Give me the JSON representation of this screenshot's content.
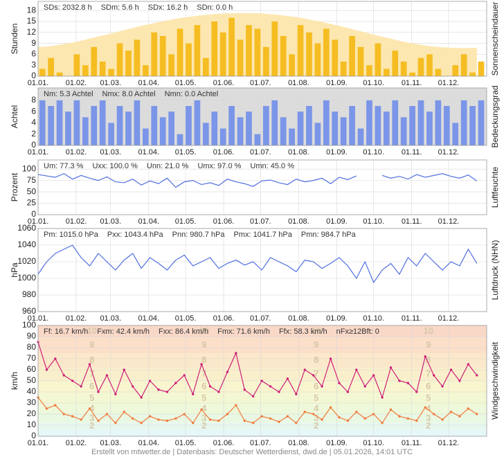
{
  "chart_data": [
    {
      "type": "bar",
      "y_label": "Stunden",
      "side_label": "Sonnenscheindauer",
      "stats": [
        "SDs: 2032.8 h",
        "SDm: 5.6 h",
        "SDx: 16.2 h",
        "SDn: 0.0 h"
      ],
      "x": [
        1,
        8,
        15,
        22,
        29,
        36,
        43,
        50,
        57,
        64,
        71,
        78,
        85,
        92,
        99,
        106,
        113,
        120,
        127,
        134,
        141,
        148,
        155,
        162,
        169,
        176,
        183,
        190,
        197,
        204,
        211,
        218,
        225,
        232,
        239,
        246,
        253,
        260,
        267,
        274,
        281,
        288,
        295,
        302,
        309,
        316,
        323,
        330,
        337,
        344,
        351,
        358
      ],
      "xlim": [
        1,
        366
      ],
      "xticks": [
        {
          "value": 1,
          "label": "01.01."
        },
        {
          "value": 32,
          "label": "01.02."
        },
        {
          "value": 60,
          "label": "01.03."
        },
        {
          "value": 91,
          "label": "01.04."
        },
        {
          "value": 121,
          "label": "01.05."
        },
        {
          "value": 152,
          "label": "01.06."
        },
        {
          "value": 182,
          "label": "01.07."
        },
        {
          "value": 213,
          "label": "01.08."
        },
        {
          "value": 244,
          "label": "01.09."
        },
        {
          "value": 274,
          "label": "01.10."
        },
        {
          "value": 305,
          "label": "01.11."
        },
        {
          "value": 335,
          "label": "01.12."
        }
      ],
      "ylim": [
        0,
        20.5
      ],
      "yticks": [
        0,
        3,
        6,
        9,
        12,
        15,
        18
      ],
      "grid": true,
      "series": [
        {
          "type": "area",
          "color": "#fde7b0",
          "values": [
            8.0,
            8.1,
            8.4,
            8.8,
            9.2,
            9.7,
            10.3,
            10.9,
            11.4,
            12.0,
            12.6,
            13.2,
            13.8,
            14.3,
            14.8,
            15.3,
            15.7,
            16.1,
            16.4,
            16.7,
            16.9,
            17.1,
            17.2,
            17.3,
            17.3,
            17.3,
            17.2,
            17.0,
            16.8,
            16.5,
            16.2,
            15.8,
            15.3,
            14.9,
            14.3,
            13.8,
            13.2,
            12.6,
            12.0,
            11.4,
            10.8,
            10.3,
            9.7,
            9.2,
            8.8,
            8.4,
            8.1,
            7.9,
            7.8,
            7.7,
            7.7,
            7.8
          ]
        },
        {
          "type": "bar",
          "color": "#f5bd22",
          "values": [
            2,
            5,
            1,
            0,
            6,
            3,
            8,
            4,
            2,
            9,
            7,
            10,
            3,
            12,
            11,
            6,
            13,
            9,
            14,
            5,
            15,
            12,
            16,
            10,
            14,
            13,
            8,
            15,
            11,
            6,
            14,
            12,
            9,
            13,
            10,
            4,
            11,
            8,
            3,
            9,
            2,
            7,
            4,
            1,
            5,
            6,
            2,
            0,
            3,
            6,
            1,
            4
          ]
        }
      ]
    },
    {
      "type": "bar",
      "y_label": "Achtel",
      "side_label": "Bedeckungsgrad",
      "background": "#dcdcdc",
      "stats": [
        "Nm: 5.3 Achtel",
        "Nmx: 8.0 Achtel",
        "Nmn: 0.0 Achtel"
      ],
      "x": [
        1,
        8,
        15,
        22,
        29,
        36,
        43,
        50,
        57,
        64,
        71,
        78,
        85,
        92,
        99,
        106,
        113,
        120,
        127,
        134,
        141,
        148,
        155,
        162,
        169,
        176,
        183,
        190,
        197,
        204,
        211,
        218,
        225,
        232,
        239,
        246,
        253,
        260,
        267,
        274,
        281,
        288,
        295,
        302,
        309,
        316,
        323,
        330,
        337,
        344,
        351,
        358
      ],
      "xlim": [
        1,
        366
      ],
      "xticks": [
        {
          "value": 1,
          "label": "01.01."
        },
        {
          "value": 32,
          "label": "01.02."
        },
        {
          "value": 60,
          "label": "01.03."
        },
        {
          "value": 91,
          "label": "01.04."
        },
        {
          "value": 121,
          "label": "01.05."
        },
        {
          "value": 152,
          "label": "01.06."
        },
        {
          "value": 182,
          "label": "01.07."
        },
        {
          "value": 213,
          "label": "01.08."
        },
        {
          "value": 244,
          "label": "01.09."
        },
        {
          "value": 274,
          "label": "01.10."
        },
        {
          "value": 305,
          "label": "01.11."
        },
        {
          "value": 335,
          "label": "01.12."
        }
      ],
      "ylim": [
        0,
        10.2
      ],
      "yticks": [
        0,
        2,
        4,
        6,
        8
      ],
      "grid": true,
      "series": [
        {
          "type": "bar",
          "color": "#7b96e8",
          "values": [
            8,
            7,
            8,
            6,
            8,
            5,
            7,
            8,
            4,
            7,
            6,
            8,
            3,
            7,
            5,
            6,
            2,
            7,
            8,
            4,
            6,
            3,
            7,
            5,
            6,
            2,
            7,
            8,
            5,
            3,
            6,
            7,
            4,
            8,
            6,
            5,
            7,
            3,
            8,
            7,
            6,
            8,
            5,
            7,
            8,
            6,
            8,
            7,
            4,
            8,
            7,
            8
          ]
        }
      ]
    },
    {
      "type": "line",
      "y_label": "Prozent",
      "side_label": "Luftfeuchte",
      "stats": [
        "Um: 77.3 %",
        "Uxx: 100.0 %",
        "Unn: 21.0 %",
        "Umx: 97.0 %",
        "Umn: 45.0 %"
      ],
      "x": [
        1,
        8,
        15,
        22,
        29,
        36,
        43,
        50,
        57,
        64,
        71,
        78,
        85,
        92,
        99,
        106,
        113,
        120,
        127,
        134,
        141,
        148,
        155,
        162,
        169,
        176,
        183,
        190,
        197,
        204,
        211,
        218,
        225,
        232,
        239,
        246,
        253,
        260,
        267,
        274,
        281,
        288,
        295,
        302,
        309,
        316,
        323,
        330,
        337,
        344,
        351,
        358
      ],
      "xlim": [
        1,
        366
      ],
      "xticks": [
        {
          "value": 1,
          "label": "01.01."
        },
        {
          "value": 32,
          "label": "01.02."
        },
        {
          "value": 60,
          "label": "01.03."
        },
        {
          "value": 91,
          "label": "01.04."
        },
        {
          "value": 121,
          "label": "01.05."
        },
        {
          "value": 152,
          "label": "01.06."
        },
        {
          "value": 182,
          "label": "01.07."
        },
        {
          "value": 213,
          "label": "01.08."
        },
        {
          "value": 244,
          "label": "01.09."
        },
        {
          "value": 274,
          "label": "01.10."
        },
        {
          "value": 305,
          "label": "01.11."
        },
        {
          "value": 335,
          "label": "01.12."
        }
      ],
      "ylim": [
        0,
        120
      ],
      "yticks": [
        0,
        25,
        50,
        75,
        100
      ],
      "grid": true,
      "series": [
        {
          "type": "line",
          "color": "#4f6fdf",
          "values": [
            88,
            85,
            82,
            90,
            78,
            86,
            80,
            75,
            83,
            72,
            70,
            78,
            65,
            74,
            68,
            80,
            60,
            72,
            75,
            66,
            70,
            64,
            78,
            72,
            68,
            62,
            74,
            76,
            70,
            66,
            78,
            72,
            75,
            80,
            68,
            82,
            77,
            85,
            null,
            null,
            86,
            80,
            84,
            78,
            88,
            82,
            86,
            90,
            84,
            80,
            87,
            74
          ]
        }
      ]
    },
    {
      "type": "line",
      "y_label": "hPa",
      "side_label": "Luftdruck (NHN)",
      "stats": [
        "Pm: 1015.0 hPa",
        "Pxx: 1043.4 hPa",
        "Pnn: 980.7 hPa",
        "Pmx: 1041.7 hPa",
        "Pmn: 984.7 hPa"
      ],
      "x": [
        1,
        8,
        15,
        22,
        29,
        36,
        43,
        50,
        57,
        64,
        71,
        78,
        85,
        92,
        99,
        106,
        113,
        120,
        127,
        134,
        141,
        148,
        155,
        162,
        169,
        176,
        183,
        190,
        197,
        204,
        211,
        218,
        225,
        232,
        239,
        246,
        253,
        260,
        267,
        274,
        281,
        288,
        295,
        302,
        309,
        316,
        323,
        330,
        337,
        344,
        351,
        358
      ],
      "xlim": [
        1,
        366
      ],
      "xticks": [
        {
          "value": 1,
          "label": "01.01."
        },
        {
          "value": 32,
          "label": "01.02."
        },
        {
          "value": 60,
          "label": "01.03."
        },
        {
          "value": 91,
          "label": "01.04."
        },
        {
          "value": 121,
          "label": "01.05."
        },
        {
          "value": 152,
          "label": "01.06."
        },
        {
          "value": 182,
          "label": "01.07."
        },
        {
          "value": 213,
          "label": "01.08."
        },
        {
          "value": 244,
          "label": "01.09."
        },
        {
          "value": 274,
          "label": "01.10."
        },
        {
          "value": 305,
          "label": "01.11."
        },
        {
          "value": 335,
          "label": "01.12."
        }
      ],
      "ylim": [
        960,
        1060
      ],
      "yticks": [
        960,
        980,
        1000,
        1020,
        1040,
        1060
      ],
      "grid": true,
      "series": [
        {
          "type": "line",
          "color": "#4f6fdf",
          "values": [
            1005,
            1020,
            1030,
            1035,
            1040,
            1025,
            1015,
            1030,
            1020,
            1010,
            1022,
            1030,
            1012,
            1025,
            1018,
            1010,
            1022,
            1028,
            1015,
            1020,
            1025,
            1012,
            1018,
            1022,
            1016,
            1020,
            1010,
            1025,
            1020,
            1015,
            1008,
            1022,
            1020,
            1012,
            1018,
            1025,
            1015,
            1000,
            1020,
            995,
            1010,
            1018,
            1005,
            1025,
            1015,
            1030,
            1020,
            1010,
            1020,
            1015,
            1035,
            1018
          ]
        }
      ]
    },
    {
      "type": "line",
      "y_label": "km/h",
      "side_label": "Windgeschwindigkeit",
      "stats": [
        "Ff: 16.7 km/h",
        "Fxm: 42.4 km/h",
        "Fxx: 86.4 km/h",
        "Fmx: 71.6 km/h",
        "Ffx: 58.3 km/h",
        "nFx≥12Bft: 0"
      ],
      "bands": [
        {
          "from": 0,
          "to": 6,
          "color": "#e6f7fa"
        },
        {
          "label": "2",
          "from": 6,
          "to": 12,
          "color": "#e6f8ef"
        },
        {
          "label": "3",
          "from": 12,
          "to": 20,
          "color": "#e9f8e3"
        },
        {
          "label": "4",
          "from": 20,
          "to": 29,
          "color": "#eef8da"
        },
        {
          "label": "5",
          "from": 29,
          "to": 39,
          "color": "#f4f8d2"
        },
        {
          "label": "6",
          "from": 39,
          "to": 50,
          "color": "#f8f5cf"
        },
        {
          "label": "7",
          "from": 50,
          "to": 62,
          "color": "#faefcb"
        },
        {
          "label": "8",
          "from": 62,
          "to": 75,
          "color": "#fbe7c9"
        },
        {
          "label": "9",
          "from": 75,
          "to": 89,
          "color": "#fbdfc9"
        },
        {
          "label": "10",
          "from": 89,
          "to": 100,
          "color": "#f9d8c8"
        }
      ],
      "x": [
        1,
        8,
        15,
        22,
        29,
        36,
        43,
        50,
        57,
        64,
        71,
        78,
        85,
        92,
        99,
        106,
        113,
        120,
        127,
        134,
        141,
        148,
        155,
        162,
        169,
        176,
        183,
        190,
        197,
        204,
        211,
        218,
        225,
        232,
        239,
        246,
        253,
        260,
        267,
        274,
        281,
        288,
        295,
        302,
        309,
        316,
        323,
        330,
        337,
        344,
        351,
        358
      ],
      "xlim": [
        1,
        366
      ],
      "xticks": [
        {
          "value": 1,
          "label": "01.01."
        },
        {
          "value": 32,
          "label": "01.02."
        },
        {
          "value": 60,
          "label": "01.03."
        },
        {
          "value": 91,
          "label": "01.04."
        },
        {
          "value": 121,
          "label": "01.05."
        },
        {
          "value": 152,
          "label": "01.06."
        },
        {
          "value": 182,
          "label": "01.07."
        },
        {
          "value": 213,
          "label": "01.08."
        },
        {
          "value": 244,
          "label": "01.09."
        },
        {
          "value": 274,
          "label": "01.10."
        },
        {
          "value": 305,
          "label": "01.11."
        },
        {
          "value": 335,
          "label": "01.12."
        }
      ],
      "ylim": [
        0,
        100
      ],
      "yticks": [
        0,
        10,
        20,
        30,
        40,
        50,
        60,
        70,
        80,
        90,
        100
      ],
      "grid": true,
      "series": [
        {
          "type": "line",
          "color": "#cc1f78",
          "values": [
            85,
            60,
            70,
            55,
            50,
            45,
            65,
            40,
            55,
            38,
            60,
            45,
            35,
            50,
            42,
            40,
            48,
            55,
            38,
            65,
            45,
            40,
            58,
            75,
            42,
            36,
            50,
            45,
            40,
            52,
            38,
            60,
            55,
            45,
            70,
            48,
            40,
            60,
            45,
            55,
            35,
            62,
            50,
            48,
            40,
            72,
            55,
            45,
            60,
            50,
            65,
            55
          ]
        },
        {
          "type": "line",
          "color": "#f07a3c",
          "values": [
            35,
            25,
            28,
            20,
            18,
            15,
            25,
            14,
            20,
            12,
            22,
            16,
            12,
            18,
            15,
            14,
            16,
            20,
            12,
            24,
            15,
            14,
            20,
            28,
            14,
            12,
            18,
            16,
            13,
            18,
            12,
            22,
            20,
            15,
            26,
            17,
            14,
            22,
            16,
            20,
            12,
            24,
            18,
            16,
            14,
            26,
            20,
            15,
            22,
            18,
            25,
            20
          ]
        }
      ]
    }
  ],
  "footer": "Erstellt von mtwetter.de | Datenbasis: Deutscher Wetterdienst, dwd.de | 05.01.2026, 14:01 UTC"
}
